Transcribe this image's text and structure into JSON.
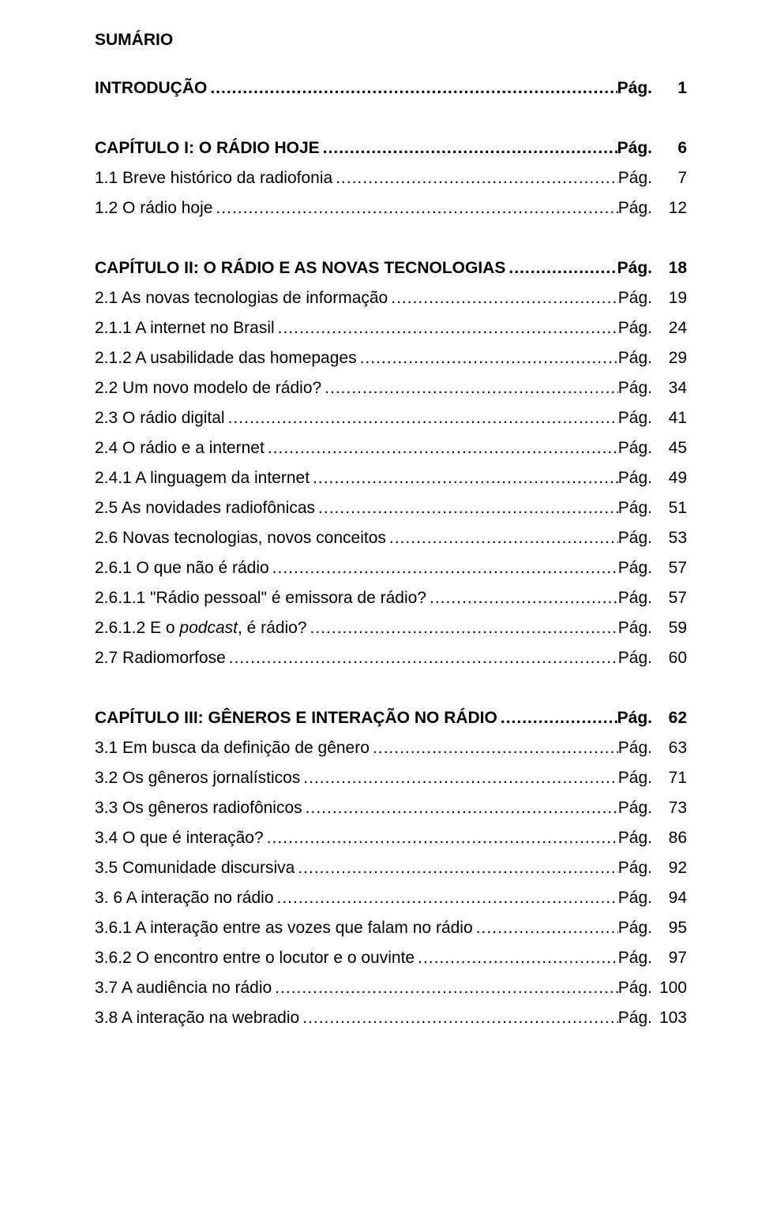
{
  "title": "SUMÁRIO",
  "page_prefix": "Pág.",
  "leader_fill": "....................................................................................................................................................................",
  "entries": [
    {
      "label": "INTRODUÇÃO",
      "page": "1",
      "bold": true,
      "gap_before": false
    },
    {
      "label": "CAPÍTULO I: O RÁDIO HOJE",
      "page": "6",
      "bold": true,
      "gap_before": true
    },
    {
      "label": "1.1 Breve histórico da radiofonia",
      "page": "7",
      "bold": false
    },
    {
      "label": "1.2 O rádio hoje",
      "page": "12",
      "bold": false
    },
    {
      "label": "CAPÍTULO II: O RÁDIO E AS NOVAS TECNOLOGIAS",
      "page": "18",
      "bold": true,
      "gap_before": true
    },
    {
      "label": "2.1 As novas tecnologias de informação",
      "page": "19",
      "bold": false
    },
    {
      "label": "2.1.1 A internet no Brasil",
      "page": "24",
      "bold": false
    },
    {
      "label": "2.1.2 A usabilidade das homepages",
      "page": "29",
      "bold": false
    },
    {
      "label": "2.2 Um novo modelo de rádio?",
      "page": "34",
      "bold": false
    },
    {
      "label": "2.3 O rádio digital",
      "page": "41",
      "bold": false
    },
    {
      "label": "2.4 O rádio e a internet",
      "page": "45",
      "bold": false
    },
    {
      "label": "2.4.1 A linguagem da internet",
      "page": "49",
      "bold": false
    },
    {
      "label": "2.5 As novidades radiofônicas",
      "page": "51",
      "bold": false
    },
    {
      "label": "2.6 Novas tecnologias, novos conceitos",
      "page": "53",
      "bold": false
    },
    {
      "label": "2.6.1 O que não é rádio",
      "page": "57",
      "bold": false
    },
    {
      "label": "2.6.1.1 \"Rádio pessoal\" é emissora de rádio?",
      "page": "57",
      "bold": false
    },
    {
      "label_pre": "2.6.1.2 E o ",
      "label_italic": "podcast",
      "label_post": ", é rádio?",
      "page": "59",
      "bold": false
    },
    {
      "label": "2.7 Radiomorfose",
      "page": "60",
      "bold": false
    },
    {
      "label": "CAPÍTULO III: GÊNEROS E INTERAÇÃO NO RÁDIO",
      "page": "62",
      "bold": true,
      "gap_before": true
    },
    {
      "label": "3.1 Em busca da definição de gênero",
      "page": "63",
      "bold": false
    },
    {
      "label": "3.2 Os gêneros jornalísticos",
      "page": "71",
      "bold": false
    },
    {
      "label": "3.3 Os gêneros radiofônicos",
      "page": "73",
      "bold": false
    },
    {
      "label": "3.4 O que é interação?",
      "page": "86",
      "bold": false
    },
    {
      "label": "3.5 Comunidade discursiva",
      "page": "92",
      "bold": false
    },
    {
      "label": "3. 6 A interação no rádio",
      "page": "94",
      "bold": false
    },
    {
      "label": "3.6.1 A interação entre as vozes que falam no rádio",
      "page": "95",
      "bold": false
    },
    {
      "label": "3.6.2 O encontro entre o locutor e o ouvinte",
      "page": "97",
      "bold": false
    },
    {
      "label": "3.7 A audiência no rádio",
      "page": "100",
      "bold": false
    },
    {
      "label": "3.8 A interação na webradio",
      "page": "103",
      "bold": false
    }
  ]
}
